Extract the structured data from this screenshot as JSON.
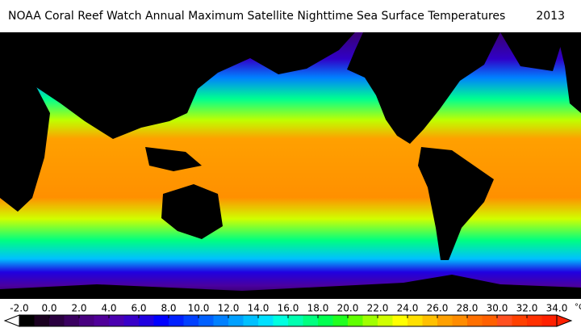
{
  "title": "NOAA Coral Reef Watch Annual Maximum Satellite Nighttime Sea Surface Temperatures",
  "year": "2013",
  "colorbar": {
    "ticks": [
      {
        "value": -2,
        "label": "-2.0"
      },
      {
        "value": 0,
        "label": "0.0"
      },
      {
        "value": 2,
        "label": "2.0"
      },
      {
        "value": 4,
        "label": "4.0"
      },
      {
        "value": 6,
        "label": "6.0"
      },
      {
        "value": 8,
        "label": "8.0"
      },
      {
        "value": 10,
        "label": "10.0"
      },
      {
        "value": 12,
        "label": "12.0"
      },
      {
        "value": 14,
        "label": "14.0"
      },
      {
        "value": 16,
        "label": "16.0"
      },
      {
        "value": 18,
        "label": "18.0"
      },
      {
        "value": 20,
        "label": "20.0"
      },
      {
        "value": 22,
        "label": "22.0"
      },
      {
        "value": 24,
        "label": "24.0"
      },
      {
        "value": 26,
        "label": "26.0"
      },
      {
        "value": 28,
        "label": "28.0"
      },
      {
        "value": 30,
        "label": "30.0"
      },
      {
        "value": 32,
        "label": "32.0"
      },
      {
        "value": 34,
        "label": "34.0"
      }
    ],
    "unit": "°C",
    "colors": [
      "#000000",
      "#1a0020",
      "#2a0040",
      "#3a0060",
      "#480080",
      "#500099",
      "#4a00b0",
      "#3800c8",
      "#2000e0",
      "#0000ff",
      "#0020ff",
      "#0040ff",
      "#0060ff",
      "#0080ff",
      "#00a0ff",
      "#00c0ff",
      "#00e0ff",
      "#00ffe0",
      "#00ffb0",
      "#00ff80",
      "#00ff50",
      "#20ff20",
      "#60ff00",
      "#a0ff00",
      "#d0ff00",
      "#ffff00",
      "#ffe000",
      "#ffc000",
      "#ffa000",
      "#ff8c00",
      "#ff7000",
      "#ff6000",
      "#ff5020",
      "#ff4000",
      "#ff3000",
      "#ff2000"
    ],
    "under_color": "#ffffff",
    "over_color": "#ff2000"
  }
}
